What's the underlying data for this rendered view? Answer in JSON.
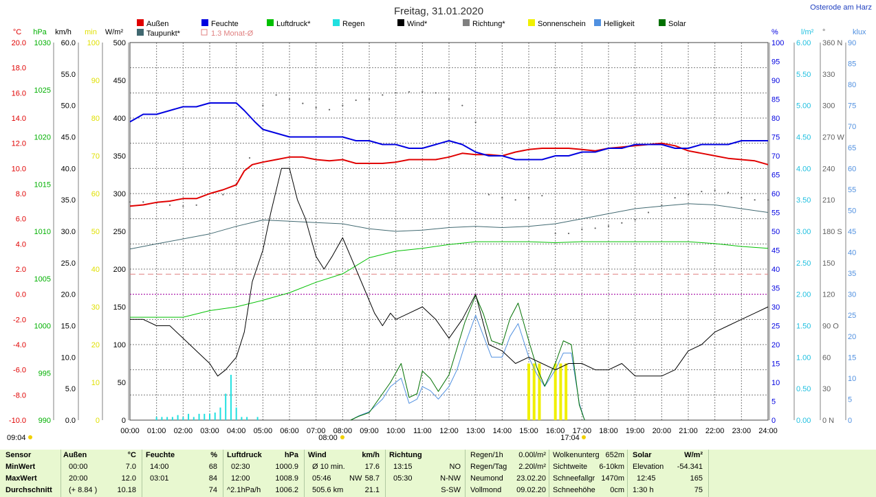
{
  "title": "Freitag, 31.01.2020",
  "location": "Osterode am Harz",
  "legend": [
    {
      "label": "Außen",
      "color": "#e00000",
      "kind": "square"
    },
    {
      "label": "Feuchte",
      "color": "#0000e0",
      "kind": "square"
    },
    {
      "label": "Luftdruck*",
      "color": "#00c000",
      "kind": "square"
    },
    {
      "label": "Regen",
      "color": "#20e0e0",
      "kind": "square"
    },
    {
      "label": "Wind*",
      "color": "#000000",
      "kind": "square"
    },
    {
      "label": "Richtung*",
      "color": "#808080",
      "kind": "square"
    },
    {
      "label": "Sonnenschein",
      "color": "#f0f000",
      "kind": "square"
    },
    {
      "label": "Helligkeit",
      "color": "#5090e0",
      "kind": "square"
    },
    {
      "label": "Solar",
      "color": "#007000",
      "kind": "square"
    },
    {
      "label": "Taupunkt*",
      "color": "#406870",
      "kind": "square"
    },
    {
      "label": "1.3 Monat-Ø",
      "color": "#e08080",
      "kind": "outline"
    }
  ],
  "axes_left": [
    {
      "unit": "°C",
      "color": "#e00000",
      "ticks": [
        "20.0",
        "18.0",
        "16.0",
        "14.0",
        "12.0",
        "10.0",
        "8.0",
        "6.0",
        "4.0",
        "2.0",
        "0.0",
        "-2.0",
        "-4.0",
        "-6.0",
        "-8.0",
        "-10.0"
      ]
    },
    {
      "unit": "hPa",
      "color": "#00b000",
      "ticks": [
        "1030",
        "1025",
        "1020",
        "1015",
        "1010",
        "1005",
        "1000",
        "995",
        "990"
      ]
    },
    {
      "unit": "km/h",
      "color": "#000000",
      "ticks": [
        "60.0",
        "55.0",
        "50.0",
        "45.0",
        "40.0",
        "35.0",
        "30.0",
        "25.0",
        "20.0",
        "15.0",
        "10.0",
        "5.0",
        "0.0"
      ]
    },
    {
      "unit": "min",
      "color": "#e0e000",
      "ticks": [
        "100",
        "90",
        "80",
        "70",
        "60",
        "50",
        "40",
        "30",
        "20",
        "10",
        "0"
      ]
    },
    {
      "unit": "W/m²",
      "color": "#000000",
      "ticks": [
        "500",
        "450",
        "400",
        "350",
        "300",
        "250",
        "200",
        "150",
        "100",
        "50",
        "0"
      ]
    }
  ],
  "axes_right": [
    {
      "unit": "%",
      "color": "#0000e0",
      "ticks": [
        "100",
        "95",
        "90",
        "85",
        "80",
        "75",
        "70",
        "65",
        "60",
        "55",
        "50",
        "45",
        "40",
        "35",
        "30",
        "25",
        "20",
        "15",
        "10",
        "5",
        "0"
      ]
    },
    {
      "unit": "l/m²",
      "color": "#20c0e0",
      "ticks": [
        "6.00",
        "5.50",
        "5.00",
        "4.50",
        "4.00",
        "3.50",
        "3.00",
        "2.50",
        "2.00",
        "1.50",
        "1.00",
        "0.50",
        "0.00"
      ]
    },
    {
      "unit": "°",
      "color": "#606060",
      "ticks": [
        "360 N",
        "330",
        "300",
        "270 W",
        "240",
        "210",
        "180 S",
        "150",
        "120",
        "90 O",
        "60",
        "30",
        "0 N"
      ]
    },
    {
      "unit": "klux",
      "color": "#5090e0",
      "ticks": [
        "90",
        "85",
        "80",
        "75",
        "70",
        "65",
        "60",
        "55",
        "50",
        "45",
        "40",
        "35",
        "30",
        "25",
        "20",
        "15",
        "10",
        "5",
        "0"
      ]
    }
  ],
  "x_ticks": [
    "00:00",
    "01:00",
    "02:00",
    "03:00",
    "04:00",
    "05:00",
    "06:00",
    "07:00",
    "08:00",
    "09:00",
    "10:00",
    "11:00",
    "12:00",
    "13:00",
    "14:00",
    "15:00",
    "16:00",
    "17:00",
    "18:00",
    "19:00",
    "20:00",
    "21:00",
    "22:00",
    "23:00",
    "24:00"
  ],
  "sun_markers": {
    "sunrise_below": "09:04",
    "sunrise_axis": "08:00",
    "sunset_axis": "17:04"
  },
  "chart_data": {
    "type": "line",
    "title": "Freitag, 31.01.2020",
    "x_unit": "hour of day",
    "xlim": [
      0,
      24
    ],
    "series": [
      {
        "name": "Außen",
        "unit": "°C",
        "ylim": [
          -10,
          20
        ],
        "color": "#e00000",
        "x": [
          0,
          0.5,
          1,
          1.5,
          2,
          2.5,
          3,
          3.5,
          4,
          4.3,
          4.6,
          5,
          5.5,
          6,
          6.5,
          7,
          7.5,
          8,
          8.5,
          9,
          9.5,
          10,
          10.5,
          11,
          11.5,
          12,
          12.5,
          13,
          13.5,
          14,
          14.5,
          15,
          15.5,
          16,
          16.5,
          17,
          17.5,
          18,
          18.5,
          19,
          19.5,
          20,
          20.5,
          21,
          21.5,
          22,
          22.5,
          23,
          23.5,
          24
        ],
        "values": [
          7.0,
          7.1,
          7.3,
          7.4,
          7.6,
          7.6,
          8.0,
          8.3,
          8.7,
          9.8,
          10.3,
          10.5,
          10.7,
          10.9,
          10.9,
          10.7,
          10.6,
          10.7,
          10.4,
          10.4,
          10.4,
          10.5,
          10.7,
          10.7,
          10.7,
          10.9,
          11.2,
          11.1,
          11.1,
          11.0,
          11.3,
          11.5,
          11.6,
          11.6,
          11.6,
          11.5,
          11.4,
          11.6,
          11.7,
          11.8,
          11.9,
          12.0,
          11.8,
          11.4,
          11.2,
          11.0,
          10.8,
          10.7,
          10.6,
          10.3
        ]
      },
      {
        "name": "Feuchte",
        "unit": "%",
        "ylim": [
          0,
          100
        ],
        "color": "#0000e0",
        "x": [
          0,
          0.5,
          1,
          1.5,
          2,
          2.5,
          3,
          3.5,
          4,
          4.3,
          4.7,
          5,
          5.5,
          6,
          6.5,
          7,
          7.5,
          8,
          8.5,
          9,
          9.5,
          10,
          10.5,
          11,
          11.5,
          12,
          12.5,
          13,
          13.5,
          14,
          14.5,
          15,
          15.5,
          16,
          16.5,
          17,
          17.5,
          18,
          18.5,
          19,
          19.5,
          20,
          20.5,
          21,
          21.5,
          22,
          22.5,
          23,
          23.5,
          24
        ],
        "values": [
          79,
          81,
          81,
          82,
          83,
          83,
          84,
          84,
          84,
          82,
          79,
          77,
          76,
          75,
          75,
          75,
          75,
          75,
          74,
          74,
          73,
          73,
          72,
          72,
          73,
          74,
          73,
          71,
          70,
          70,
          69,
          69,
          69,
          70,
          70,
          71,
          71,
          72,
          72,
          73,
          73,
          73,
          72,
          72,
          73,
          73,
          73,
          74,
          74,
          74
        ]
      },
      {
        "name": "Taupunkt*",
        "unit": "°C",
        "ylim": [
          -10,
          20
        ],
        "color": "#406870",
        "x": [
          0,
          1,
          2,
          3,
          4,
          5,
          6,
          7,
          8,
          9,
          10,
          11,
          12,
          13,
          14,
          15,
          16,
          17,
          18,
          19,
          20,
          21,
          22,
          23,
          24
        ],
        "values": [
          3.6,
          4.0,
          4.4,
          4.8,
          5.4,
          5.9,
          5.8,
          5.7,
          5.6,
          5.2,
          5.0,
          5.1,
          5.3,
          5.4,
          5.3,
          5.4,
          5.6,
          6.0,
          6.4,
          6.8,
          7.0,
          7.2,
          7.1,
          6.8,
          6.5
        ]
      },
      {
        "name": "Luftdruck*",
        "unit": "hPa",
        "ylim": [
          990,
          1030
        ],
        "color": "#00c000",
        "x": [
          0,
          1,
          2,
          3,
          4,
          5,
          6,
          7,
          8,
          9,
          10,
          11,
          12,
          13,
          14,
          15,
          16,
          17,
          18,
          19,
          20,
          21,
          22,
          23,
          24
        ],
        "values": [
          1000.9,
          1000.9,
          1000.9,
          1001.6,
          1002.0,
          1002.7,
          1003.5,
          1004.6,
          1005.5,
          1007.2,
          1007.9,
          1008.2,
          1008.6,
          1008.9,
          1008.9,
          1008.9,
          1008.8,
          1008.9,
          1008.9,
          1008.9,
          1008.9,
          1008.9,
          1008.7,
          1008.4,
          1008.2
        ]
      },
      {
        "name": "Wind*",
        "unit": "km/h",
        "ylim": [
          0,
          60
        ],
        "color": "#000000",
        "x": [
          0,
          0.5,
          1,
          1.5,
          2,
          2.5,
          3,
          3.3,
          3.6,
          4,
          4.3,
          4.6,
          5,
          5.3,
          5.7,
          6,
          6.3,
          6.6,
          7,
          7.3,
          7.6,
          8,
          8.4,
          8.8,
          9.2,
          9.5,
          9.8,
          10,
          10.5,
          11,
          11.5,
          12,
          12.5,
          13,
          13.5,
          14,
          14.5,
          15,
          15.5,
          16,
          16.5,
          17,
          17.5,
          18,
          18.5,
          19,
          19.5,
          20,
          20.5,
          21,
          21.5,
          22,
          22.5,
          23,
          23.5,
          24
        ],
        "values": [
          16,
          16,
          15,
          15,
          13,
          11,
          9,
          7,
          8,
          10,
          14,
          22,
          27,
          33,
          40,
          40,
          35,
          32,
          26,
          24,
          26,
          29,
          25,
          21,
          17,
          15,
          17,
          16,
          17,
          18,
          16,
          13,
          16,
          20,
          12,
          11,
          9,
          10,
          9,
          8,
          9,
          9,
          8,
          8,
          9,
          7,
          7,
          7,
          8,
          11,
          12,
          14,
          15,
          16,
          17,
          18
        ]
      },
      {
        "name": "Richtung*",
        "unit": "°",
        "ylim": [
          0,
          360
        ],
        "color": "#606060",
        "x": [
          0,
          0.5,
          1,
          1.5,
          2,
          2.5,
          3,
          3.5,
          4,
          4.5,
          5,
          5.5,
          6,
          6.5,
          7,
          7.5,
          8,
          8.5,
          9,
          9.5,
          10,
          10.5,
          11,
          11.5,
          12,
          12.5,
          13,
          13.5,
          14,
          14.5,
          15,
          15.5,
          16,
          16.5,
          17,
          17.5,
          18,
          18.5,
          19,
          19.5,
          20,
          20.5,
          21,
          21.5,
          22,
          22.5,
          23,
          23.5,
          24
        ],
        "values": [
          208,
          208,
          207,
          205,
          204,
          205,
          210,
          215,
          225,
          250,
          300,
          310,
          306,
          302,
          298,
          296,
          300,
          305,
          306,
          310,
          312,
          313,
          313,
          312,
          306,
          300,
          284,
          215,
          212,
          210,
          212,
          214,
          178,
          178,
          182,
          183,
          185,
          188,
          191,
          198,
          205,
          212,
          215,
          218,
          219,
          217,
          212,
          210,
          210
        ]
      },
      {
        "name": "Regen",
        "unit": "l/m²",
        "ylim": [
          0,
          6
        ],
        "color": "#20e0e0",
        "kind": "bars",
        "x": [
          1,
          1.2,
          1.4,
          1.6,
          1.8,
          2.0,
          2.2,
          2.4,
          2.6,
          2.8,
          3.0,
          3.2,
          3.4,
          3.6,
          3.8,
          4.0,
          4.2,
          4.4,
          4.8
        ],
        "values": [
          0.05,
          0.05,
          0.05,
          0.05,
          0.08,
          0.05,
          0.1,
          0.05,
          0.1,
          0.1,
          0.1,
          0.12,
          0.2,
          0.42,
          0.72,
          0.2,
          0.05,
          0.05,
          0.05
        ]
      },
      {
        "name": "Sonnenschein",
        "unit": "min",
        "ylim": [
          0,
          100
        ],
        "color": "#f0f000",
        "kind": "bars",
        "x": [
          15.0,
          15.2,
          15.4,
          16.0,
          16.2,
          16.4
        ],
        "values": [
          15,
          15,
          15,
          15,
          15,
          15
        ]
      },
      {
        "name": "Solar",
        "unit": "W/m²",
        "ylim": [
          0,
          500
        ],
        "color": "#007000",
        "x": [
          8.3,
          8.6,
          9.0,
          9.5,
          9.8,
          10.2,
          10.5,
          10.8,
          11.0,
          11.3,
          11.6,
          12.0,
          12.3,
          12.6,
          13.0,
          13.3,
          13.6,
          14.0,
          14.3,
          14.6,
          15.0,
          15.3,
          15.6,
          16.0,
          16.3,
          16.6,
          16.9,
          17.1
        ],
        "values": [
          0,
          5,
          10,
          35,
          50,
          75,
          30,
          35,
          65,
          55,
          38,
          60,
          95,
          130,
          165,
          140,
          105,
          100,
          135,
          155,
          105,
          70,
          45,
          75,
          105,
          100,
          20,
          0
        ]
      },
      {
        "name": "Helligkeit",
        "unit": "klux",
        "ylim": [
          0,
          90
        ],
        "color": "#5090e0",
        "x": [
          8.3,
          8.6,
          9.0,
          9.5,
          9.8,
          10.2,
          10.5,
          10.8,
          11.0,
          11.3,
          11.6,
          12.0,
          12.3,
          12.6,
          13.0,
          13.3,
          13.6,
          14.0,
          14.3,
          14.6,
          15.0,
          15.3,
          15.6,
          16.0,
          16.3,
          16.6,
          16.9,
          17.1
        ],
        "values": [
          0,
          1,
          2,
          5,
          8,
          10,
          4,
          5,
          8,
          7,
          5,
          8,
          12,
          18,
          25,
          20,
          15,
          15,
          20,
          23,
          15,
          11,
          8,
          12,
          16,
          16,
          4,
          0
        ]
      }
    ],
    "reference_lines": [
      {
        "name": "1.3 Monat-Ø",
        "unit": "°C",
        "value": 1.6,
        "color": "#e08080",
        "style": "dashed"
      },
      {
        "name": "0 °C",
        "unit": "°C",
        "value": 0.0,
        "color": "#b000b0",
        "style": "dotted"
      }
    ]
  },
  "footer": {
    "headers": {
      "sensor": "Sensor",
      "aussen": "Außen",
      "aussen_unit": "°C",
      "feuchte": "Feuchte",
      "feuchte_unit": "%",
      "luftdruck": "Luftdruck",
      "luftdruck_unit": "hPa",
      "wind": "Wind",
      "wind_unit": "km/h",
      "richtung": "Richtung"
    },
    "row_labels": {
      "min": "MinWert",
      "max": "MaxWert",
      "avg": "Durchschnitt"
    },
    "aussen": {
      "min_time": "00:00",
      "min_val": "7.0",
      "max_time": "20:00",
      "max_val": "12.0",
      "avg_extra": "(+ 8.84 )",
      "avg_val": "10.18"
    },
    "feuchte": {
      "min_time": "14:00",
      "min_val": "68",
      "max_time": "03:01",
      "max_val": "84",
      "avg_val": "74"
    },
    "luftdruck": {
      "min_time": "02:30",
      "min_val": "1000.9",
      "max_time": "12:00",
      "max_val": "1008.9",
      "avg_extra": "^2.1hPa/h",
      "avg_val": "1006.2"
    },
    "wind": {
      "min_label": "Ø 10 min.",
      "min_val": "17.6",
      "max_time": "05:46",
      "max_dir": "NW",
      "max_val": "58.7",
      "avg_label": "505.6 km",
      "avg_val": "21.1"
    },
    "richtung": {
      "r1_time": "13:15",
      "r1_val": "NO",
      "r2_time": "05:30",
      "r2_val": "N-NW",
      "r3_val": "S-SW"
    },
    "regen": [
      {
        "label": "Regen/1h",
        "value": "0.00l/m²"
      },
      {
        "label": "Regen/Tag",
        "value": "2.20l/m²"
      },
      {
        "label": "Neumond",
        "value": "23.02.20"
      },
      {
        "label": "Vollmond",
        "value": "09.02.20"
      }
    ],
    "wolken": [
      {
        "label": "Wolkenunterg",
        "value": "652m"
      },
      {
        "label": "Sichtweite",
        "value": "6-10km"
      },
      {
        "label": "Schneefallgr",
        "value": "1470m"
      },
      {
        "label": "Schneehöhe",
        "value": "0cm"
      }
    ],
    "solar": {
      "header": "Solar",
      "unit": "W/m²",
      "r1_label": "Elevation",
      "r1_val": "-54.341",
      "r2_label": "12:45",
      "r2_val": "165",
      "r3_label": "1:30 h",
      "r3_val": "75"
    }
  }
}
